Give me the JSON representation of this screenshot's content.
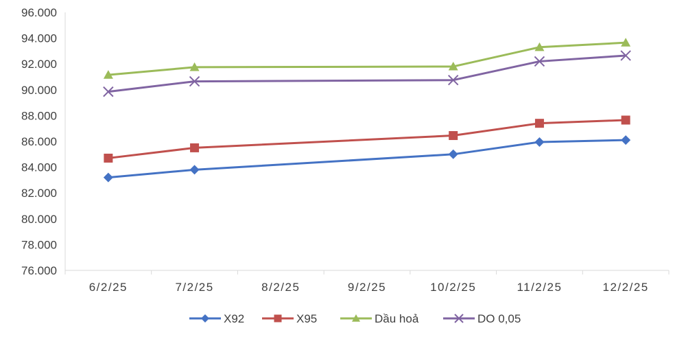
{
  "chart_data": {
    "type": "line",
    "title": "",
    "xlabel": "",
    "ylabel": "",
    "categories": [
      "6/2/25",
      "7/2/25",
      "8/2/25",
      "9/2/25",
      "10/2/25",
      "11/2/25",
      "12/2/25"
    ],
    "ylim": [
      76000,
      96000
    ],
    "yticks": [
      76000,
      78000,
      80000,
      82000,
      84000,
      86000,
      88000,
      90000,
      92000,
      94000,
      96000
    ],
    "ytick_labels": [
      "76.000",
      "78.000",
      "80.000",
      "82.000",
      "84.000",
      "86.000",
      "88.000",
      "90.000",
      "92.000",
      "94.000",
      "96.000"
    ],
    "grid": false,
    "legend_position": "bottom",
    "series": [
      {
        "name": "X92",
        "color": "#4472C4",
        "marker": "diamond",
        "values": [
          83200,
          83800,
          null,
          null,
          85000,
          85950,
          86100
        ]
      },
      {
        "name": "X95",
        "color": "#C0504D",
        "marker": "square",
        "values": [
          84700,
          85500,
          null,
          null,
          86450,
          87400,
          87650
        ]
      },
      {
        "name": "Dầu hoả",
        "color": "#9BBB59",
        "marker": "triangle",
        "values": [
          91150,
          91750,
          null,
          null,
          91800,
          93300,
          93650
        ]
      },
      {
        "name": "DO 0,05",
        "color": "#8064A2",
        "marker": "x",
        "values": [
          89850,
          90650,
          null,
          null,
          90750,
          92200,
          92650
        ]
      }
    ]
  }
}
